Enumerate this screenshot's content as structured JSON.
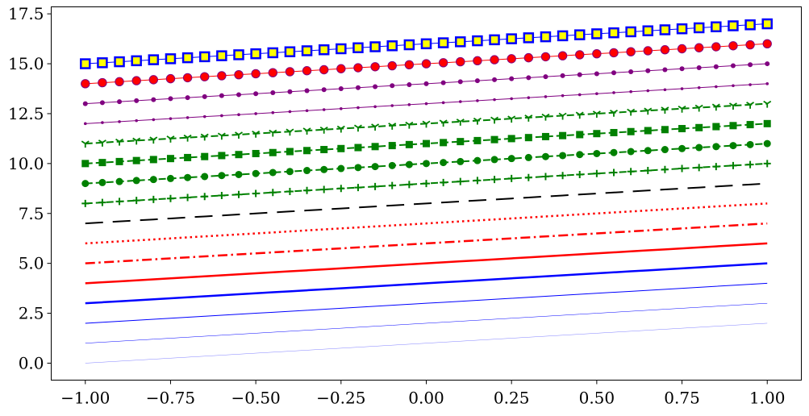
{
  "chart_data": {
    "type": "line",
    "xlim": [
      -1.1,
      1.1
    ],
    "ylim": [
      -0.85,
      17.85
    ],
    "x_ticks": [
      -1.0,
      -0.75,
      -0.5,
      -0.25,
      0.0,
      0.25,
      0.5,
      0.75,
      1.0
    ],
    "x_tick_labels": [
      "−1.00",
      "−0.75",
      "−0.50",
      "−0.25",
      "0.00",
      "0.25",
      "0.50",
      "0.75",
      "1.00"
    ],
    "y_ticks": [
      0.0,
      2.5,
      5.0,
      7.5,
      10.0,
      12.5,
      15.0,
      17.5
    ],
    "y_tick_labels": [
      "0.0",
      "2.5",
      "5.0",
      "7.5",
      "10.0",
      "12.5",
      "15.0",
      "17.5"
    ],
    "grid": false,
    "x": [
      -1.0,
      -0.95,
      -0.9,
      -0.85,
      -0.8,
      -0.75,
      -0.7,
      -0.65,
      -0.6,
      -0.55,
      -0.5,
      -0.45,
      -0.4,
      -0.35,
      -0.3,
      -0.25,
      -0.2,
      -0.15,
      -0.1,
      -0.05,
      0.0,
      0.05,
      0.1,
      0.15,
      0.2,
      0.25,
      0.3,
      0.35,
      0.4,
      0.45,
      0.5,
      0.55,
      0.6,
      0.65,
      0.7,
      0.75,
      0.8,
      0.85,
      0.9,
      0.95,
      1.0
    ],
    "series": [
      {
        "color": "#0000ff",
        "style": "solid",
        "linewidth": 0.25,
        "marker": "none",
        "y_start": 0,
        "y_end": 2
      },
      {
        "color": "#0000ff",
        "style": "solid",
        "linewidth": 0.5,
        "marker": "none",
        "y_start": 1,
        "y_end": 3
      },
      {
        "color": "#0000ff",
        "style": "solid",
        "linewidth": 1,
        "marker": "none",
        "y_start": 2,
        "y_end": 4
      },
      {
        "color": "#0000ff",
        "style": "solid",
        "linewidth": 2.5,
        "marker": "none",
        "y_start": 3,
        "y_end": 5
      },
      {
        "color": "#ff0000",
        "style": "solid",
        "linewidth": 2.5,
        "marker": "none",
        "y_start": 4,
        "y_end": 6
      },
      {
        "color": "#ff0000",
        "style": "dashdot",
        "linewidth": 2.5,
        "marker": "none",
        "y_start": 5,
        "y_end": 7
      },
      {
        "color": "#ff0000",
        "style": "dotted",
        "linewidth": 2.5,
        "marker": "none",
        "y_start": 6,
        "y_end": 8
      },
      {
        "color": "#000000",
        "style": "longdash",
        "linewidth": 2,
        "marker": "none",
        "y_start": 7,
        "y_end": 9
      },
      {
        "color": "#008000",
        "style": "dashed",
        "linewidth": 2,
        "marker": "plus",
        "y_start": 8,
        "y_end": 10
      },
      {
        "color": "#008000",
        "style": "dashed",
        "linewidth": 2,
        "marker": "circle",
        "y_start": 9,
        "y_end": 11
      },
      {
        "color": "#008000",
        "style": "dashed",
        "linewidth": 2,
        "marker": "square",
        "y_start": 10,
        "y_end": 12
      },
      {
        "color": "#008000",
        "style": "dashed",
        "linewidth": 2,
        "marker": "tri",
        "y_start": 11,
        "y_end": 13
      },
      {
        "color": "#800080",
        "style": "solid",
        "linewidth": 1,
        "marker": "smalldot",
        "y_start": 12,
        "y_end": 14
      },
      {
        "color": "#800080",
        "style": "solid",
        "linewidth": 1,
        "marker": "dot",
        "y_start": 13,
        "y_end": 15
      },
      {
        "color": "#ff0000",
        "style": "solid",
        "linewidth": 1,
        "marker": "bigcircle",
        "marker_edge": "#800080",
        "y_start": 14,
        "y_end": 16
      },
      {
        "color": "#0000ff",
        "style": "solid",
        "linewidth": 1,
        "marker": "bigsquare",
        "marker_face": "#ffff00",
        "marker_edge": "#0000ff",
        "y_start": 15,
        "y_end": 17
      }
    ]
  }
}
